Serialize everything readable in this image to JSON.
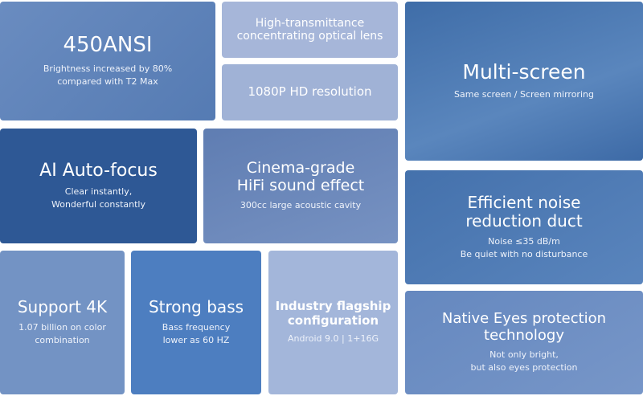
{
  "tiles": [
    {
      "title": [
        "450ANSI"
      ],
      "text": [
        "Brightness increased by 80%",
        "compared with T2 Max"
      ]
    },
    {
      "title": [
        "High-transmittance",
        "concentrating optical lens"
      ],
      "text": []
    },
    {
      "title": [
        "1080P HD resolution"
      ],
      "text": []
    },
    {
      "title": [
        "Multi-screen"
      ],
      "text": [
        "Same screen / Screen mirroring"
      ]
    },
    {
      "title": [
        "AI Auto-focus"
      ],
      "text": [
        "Clear instantly,",
        "Wonderful constantly"
      ]
    },
    {
      "title": [
        "Cinema-grade",
        "HiFi sound effect"
      ],
      "text": [
        "300cc large acoustic cavity"
      ]
    },
    {
      "title": [
        "Efficient noise",
        "reduction duct"
      ],
      "text": [
        "Noise ≤35 dB/m",
        "Be quiet with no disturbance"
      ]
    },
    {
      "title": [
        "Support 4K"
      ],
      "text": [
        "1.07 billion on color",
        "combination"
      ]
    },
    {
      "title": [
        "Strong bass"
      ],
      "text": [
        "Bass frequency",
        "lower as 60 HZ"
      ]
    },
    {
      "title": [
        "Industry flagship",
        "configuration"
      ],
      "text": [
        "Android 9.0  |  1+16G"
      ]
    },
    {
      "title": [
        "Native Eyes protection",
        "technology"
      ],
      "text": [
        "Not only bright,",
        "but also eyes protection"
      ]
    }
  ]
}
